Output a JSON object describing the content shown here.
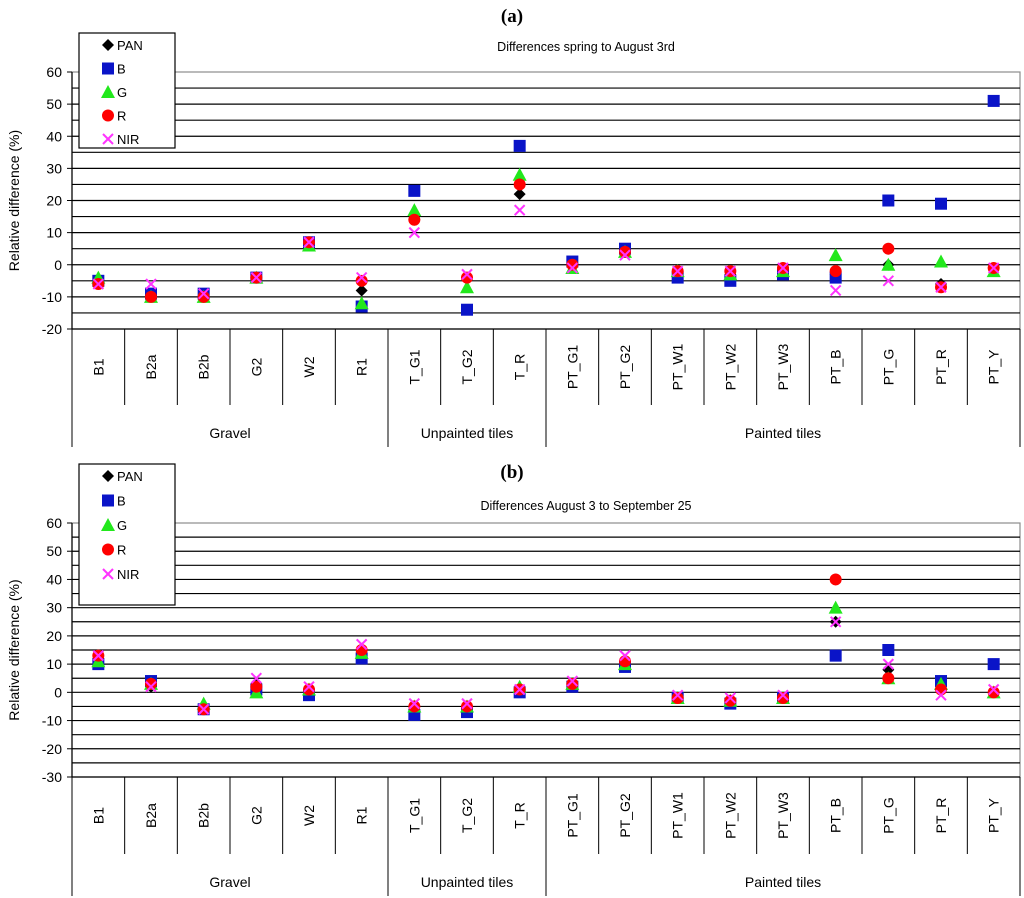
{
  "colors": {
    "PAN": "#000000",
    "B": "#0a14c8",
    "G": "#22e81c",
    "R": "#ff0000",
    "NIR": "#ff33ff"
  },
  "chart_data": [
    {
      "type": "scatter",
      "panel_label": "(a)",
      "title": "Differences spring to August 3rd",
      "ylabel": "Relative difference (%)",
      "ylim": [
        -20,
        60
      ],
      "yticks": [
        -20,
        -10,
        0,
        10,
        20,
        30,
        40,
        50,
        60
      ],
      "grid": true,
      "legend_position": "top-left",
      "categories": [
        "B1",
        "B2a",
        "B2b",
        "G2",
        "W2",
        "R1",
        "T_G1",
        "T_G2",
        "T_R",
        "PT_G1",
        "PT_G2",
        "PT_W1",
        "PT_W2",
        "PT_W3",
        "PT_B",
        "PT_G",
        "PT_R",
        "PT_Y"
      ],
      "groups": [
        {
          "label": "Gravel",
          "count": 6
        },
        {
          "label": "Unpainted tiles",
          "count": 3
        },
        {
          "label": "Painted tiles",
          "count": 9
        }
      ],
      "series": [
        {
          "name": "PAN",
          "marker": "diamond",
          "values": [
            -5,
            -9,
            -10,
            -4,
            6,
            -8,
            14,
            -4,
            22,
            0,
            4,
            -2,
            -3,
            -1,
            -3,
            0,
            -6,
            -1
          ]
        },
        {
          "name": "B",
          "marker": "square",
          "values": [
            -5,
            -9,
            -9,
            -4,
            7,
            -13,
            23,
            -14,
            37,
            1,
            5,
            -4,
            -5,
            -3,
            -4,
            20,
            19,
            51
          ]
        },
        {
          "name": "G",
          "marker": "triangle",
          "values": [
            -4,
            -10,
            -10,
            -4,
            6,
            -12,
            17,
            -7,
            28,
            -1,
            4,
            -2,
            -3,
            -2,
            3,
            0,
            1,
            -2
          ]
        },
        {
          "name": "R",
          "marker": "circle",
          "values": [
            -6,
            -10,
            -10,
            -4,
            7,
            -5,
            14,
            -4,
            25,
            0,
            4,
            -2,
            -2,
            -1,
            -2,
            5,
            -7,
            -1
          ]
        },
        {
          "name": "NIR",
          "marker": "cross",
          "values": [
            -6,
            -6,
            -9,
            -4,
            7,
            -4,
            10,
            -3,
            17,
            -1,
            3,
            -2,
            -2,
            -1,
            -8,
            -5,
            -7,
            -1
          ]
        }
      ]
    },
    {
      "type": "scatter",
      "panel_label": "(b)",
      "title": "Differences August 3 to September 25",
      "ylabel": "Relative difference (%)",
      "ylim": [
        -30,
        60
      ],
      "yticks": [
        -30,
        -20,
        -10,
        0,
        10,
        20,
        30,
        40,
        50,
        60
      ],
      "grid": true,
      "legend_position": "top-left",
      "categories": [
        "B1",
        "B2a",
        "B2b",
        "G2",
        "W2",
        "R1",
        "T_G1",
        "T_G2",
        "T_R",
        "PT_G1",
        "PT_G2",
        "PT_W1",
        "PT_W2",
        "PT_W3",
        "PT_B",
        "PT_G",
        "PT_R",
        "PT_Y"
      ],
      "groups": [
        {
          "label": "Gravel",
          "count": 6
        },
        {
          "label": "Unpainted tiles",
          "count": 3
        },
        {
          "label": "Painted tiles",
          "count": 9
        }
      ],
      "series": [
        {
          "name": "PAN",
          "marker": "diamond",
          "values": [
            12,
            2,
            -5,
            3,
            1,
            14,
            -5,
            -5,
            1,
            3,
            11,
            -2,
            -3,
            -2,
            25,
            8,
            3,
            0
          ]
        },
        {
          "name": "B",
          "marker": "square",
          "values": [
            10,
            4,
            -6,
            1,
            -1,
            12,
            -8,
            -7,
            0,
            2,
            9,
            -2,
            -4,
            -2,
            13,
            15,
            4,
            10
          ]
        },
        {
          "name": "G",
          "marker": "triangle",
          "values": [
            11,
            3,
            -4,
            0,
            1,
            14,
            -5,
            -5,
            2,
            3,
            10,
            -2,
            -3,
            -2,
            30,
            5,
            3,
            0
          ]
        },
        {
          "name": "R",
          "marker": "circle",
          "values": [
            13,
            3,
            -6,
            2,
            1,
            15,
            -5,
            -5,
            1,
            3,
            11,
            -2,
            -3,
            -2,
            40,
            5,
            1,
            0
          ]
        },
        {
          "name": "NIR",
          "marker": "cross",
          "values": [
            13,
            2,
            -6,
            5,
            2,
            17,
            -4,
            -4,
            1,
            4,
            13,
            -1,
            -2,
            -1,
            25,
            10,
            -1,
            1
          ]
        }
      ]
    }
  ]
}
